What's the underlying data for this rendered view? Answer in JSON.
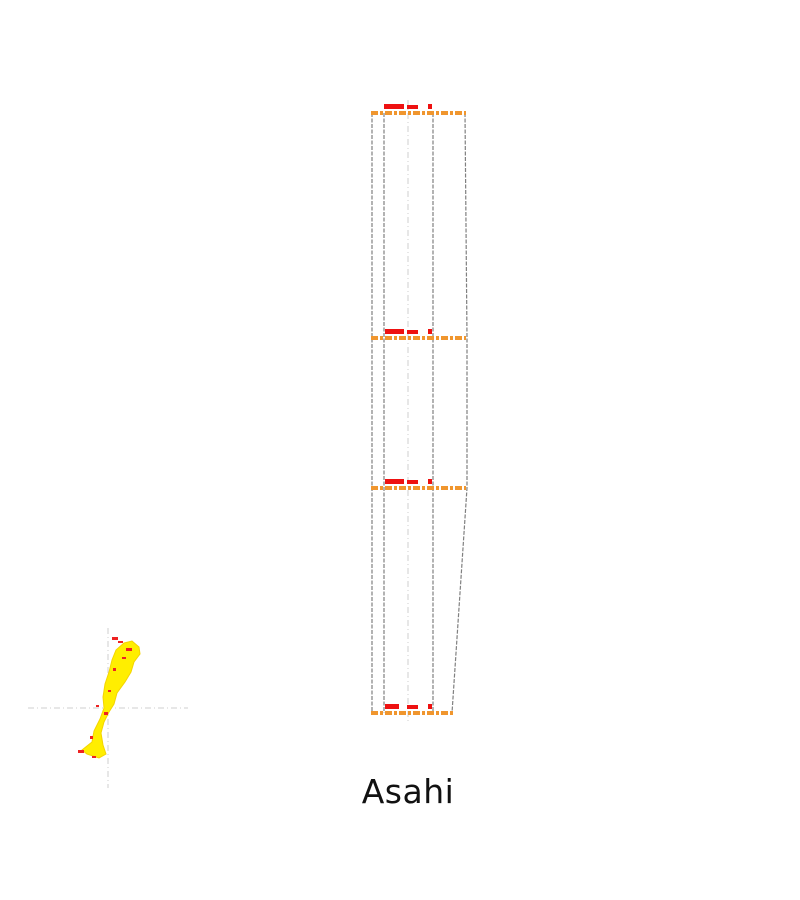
{
  "caption": "Asahi",
  "colors": {
    "outline": "#808080",
    "centerline": "#cfcfcf",
    "floor_band": "#f0962e",
    "floor_mark": "#ee1111",
    "footprint_fill": "#ffee00",
    "footprint_mark": "#ee2222"
  },
  "elevation": {
    "floor_levels": 4
  }
}
